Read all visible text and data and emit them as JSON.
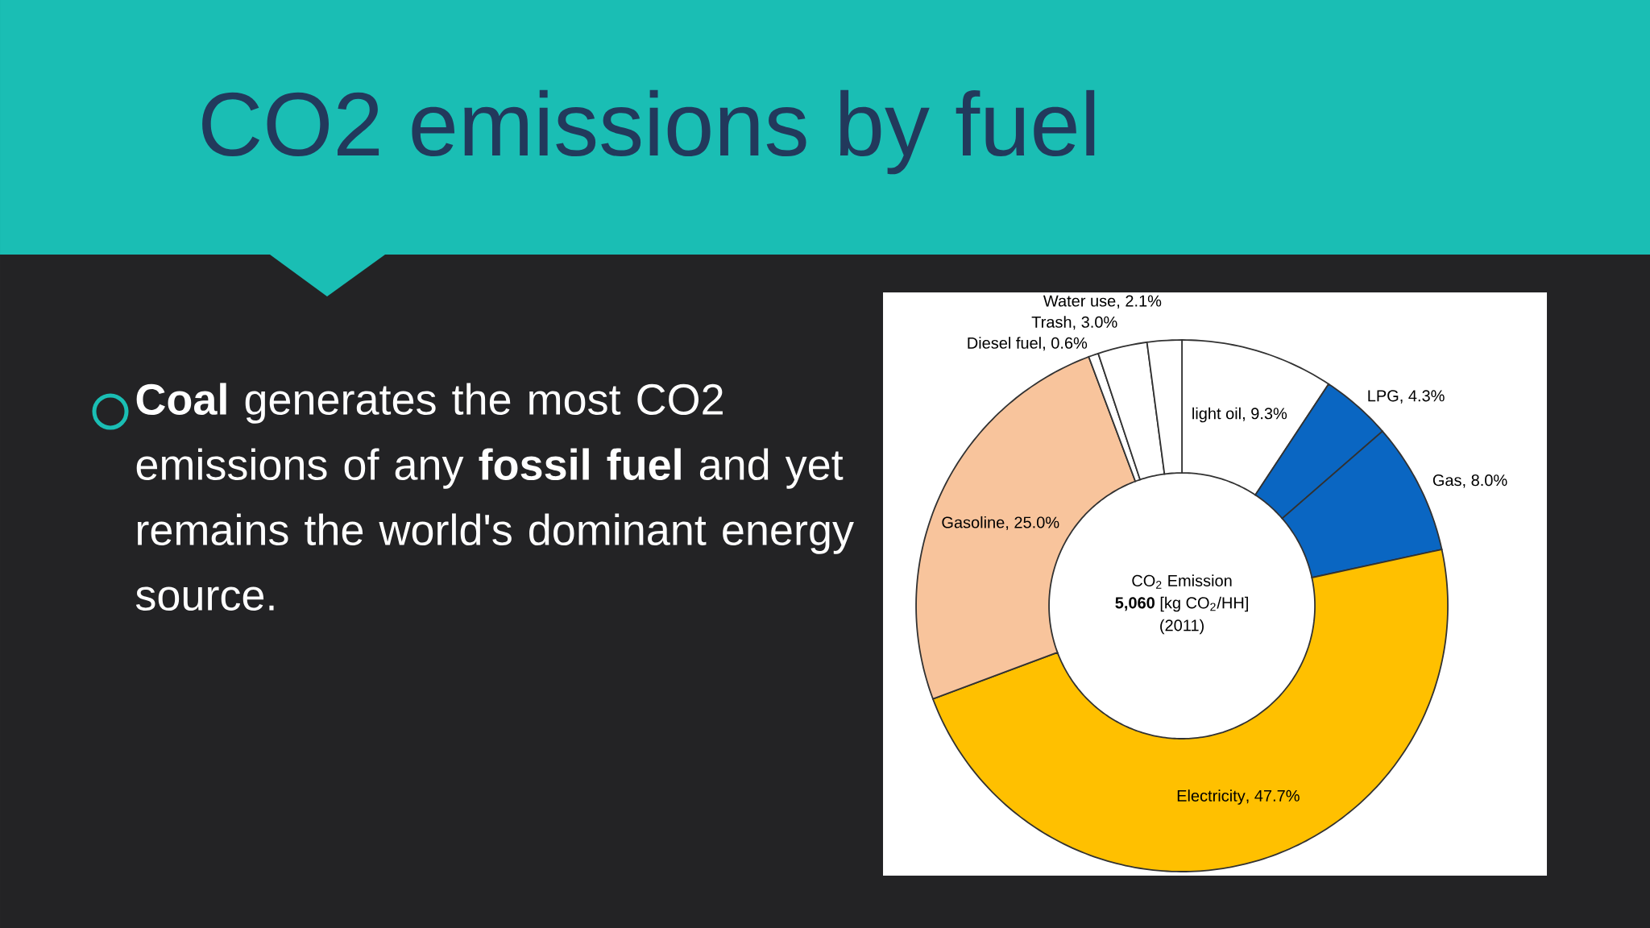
{
  "chart_data": {
    "type": "donut",
    "title": "CO2 emissions by fuel",
    "categories": [
      "light oil",
      "LPG",
      "Gas",
      "Electricity",
      "Gasoline",
      "Diesel fuel",
      "Trash",
      "Water use"
    ],
    "value_labels": [
      ", 9.3%",
      ", 4.3%",
      ", 8.0%",
      ", 47.7%",
      ", 25.0%",
      ", 0.6%",
      ", 3.0%",
      ", 2.1%"
    ],
    "values": [
      9.3,
      4.3,
      8.0,
      47.7,
      25.0,
      0.6,
      3.0,
      2.1
    ],
    "colors": [
      "#ffffff",
      "#0a66c2",
      "#0a66c2",
      "#ffc000",
      "#f8c49c",
      "#ffffff",
      "#ffffff",
      "#ffffff"
    ],
    "annotations": [
      "CO$_{2}$ Emission",
      "**5,060** [kg CO$_{2}$/HH]",
      "(2011)",
      "**Coal** generates the most CO2 emissions of any **fossil fuel** and yet remains the world's dominant energy source."
    ]
  }
}
